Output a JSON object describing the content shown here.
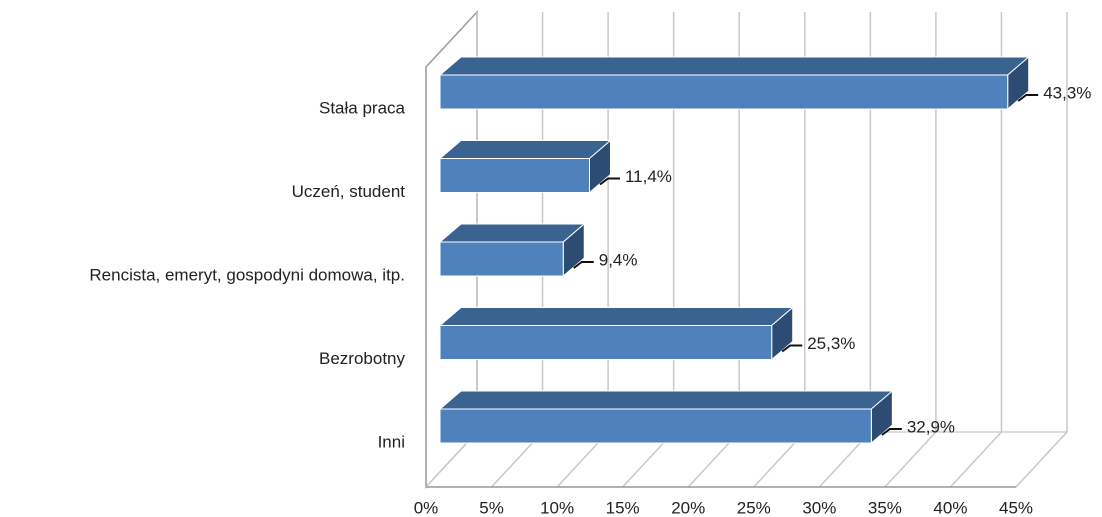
{
  "chart_data": {
    "type": "bar",
    "orientation": "horizontal",
    "three_d": true,
    "categories": [
      "Stała praca",
      "Uczeń, student",
      "Rencista, emeryt, gospodyni domowa, itp.",
      "Bezrobotny",
      "Inni"
    ],
    "values": [
      43.3,
      11.4,
      9.4,
      25.3,
      32.9
    ],
    "value_labels": [
      "43,3%",
      "11,4%",
      "9,4%",
      "25,3%",
      "32,9%"
    ],
    "color": "#4f81bd",
    "xlim": [
      0,
      45
    ],
    "xticks": [
      {
        "value": 0,
        "label": "0%"
      },
      {
        "value": 5,
        "label": "5%"
      },
      {
        "value": 10,
        "label": "10%"
      },
      {
        "value": 15,
        "label": "15%"
      },
      {
        "value": 20,
        "label": "20%"
      },
      {
        "value": 25,
        "label": "25%"
      },
      {
        "value": 30,
        "label": "30%"
      },
      {
        "value": 35,
        "label": "35%"
      },
      {
        "value": 40,
        "label": "40%"
      },
      {
        "value": 45,
        "label": "45%"
      }
    ],
    "grid": true
  }
}
